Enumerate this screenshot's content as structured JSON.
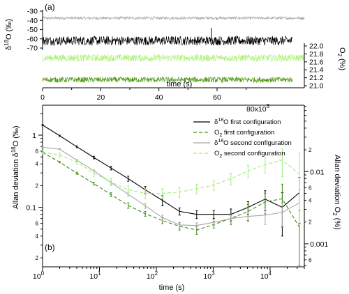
{
  "colors": {
    "d18O_first": "#000000",
    "O2_first": "#3d8c12",
    "d18O_second": "#a6a6a6",
    "O2_second": "#9ef07a",
    "trace_d18O_second": "#a6a6a6",
    "trace_d18O_first": "#000000",
    "trace_O2_a": "#aef27a",
    "trace_O2_b": "#4e9a12"
  },
  "chart_data": [
    {
      "type": "line",
      "panel_label": "(a)",
      "xlabel": "time (s)",
      "x_multiplier_label": "80x10",
      "x_multiplier_exp": "3",
      "xlim": [
        0,
        90000
      ],
      "x_ticks": [
        0,
        20,
        40,
        60
      ],
      "y_left": {
        "label_parts": [
          "δ",
          "18",
          "O (‰)"
        ],
        "ticks": [
          -30,
          -40,
          -50,
          -60,
          -70
        ],
        "ylim": [
          -70,
          -30
        ]
      },
      "y_right": {
        "label_parts": [
          "O",
          "2",
          " (%)"
        ],
        "ticks": [
          "22.0",
          "21.8",
          "21.6",
          "21.4",
          "21.2",
          "21.0"
        ],
        "ylim": [
          21.0,
          22.0
        ]
      },
      "series": [
        {
          "key": "trace_d18O_second",
          "axis": "left",
          "mean": -37.5,
          "noise": 1.5,
          "x_range": [
            0,
            90000
          ]
        },
        {
          "key": "trace_d18O_first",
          "axis": "left",
          "mean": -62,
          "noise": 5,
          "spike_at": 58000,
          "spike_to": -48,
          "x_range": [
            0,
            86000
          ]
        },
        {
          "key": "trace_O2_a",
          "axis": "right",
          "mean": 21.7,
          "noise": 0.09,
          "x_range": [
            0,
            90000
          ]
        },
        {
          "key": "trace_O2_b",
          "axis": "right",
          "mean": 21.15,
          "noise": 0.07,
          "x_range": [
            0,
            86000
          ]
        }
      ]
    },
    {
      "type": "line",
      "panel_label": "(b)",
      "scale": "log-log",
      "xlabel": "time (s)",
      "xlim": [
        1,
        40000
      ],
      "x_ticks": [
        {
          "base": "10",
          "exp": "0",
          "value": 1
        },
        {
          "base": "10",
          "exp": "1",
          "value": 10
        },
        {
          "base": "10",
          "exp": "2",
          "value": 100
        },
        {
          "base": "10",
          "exp": "3",
          "value": 1000
        },
        {
          "base": "10",
          "exp": "4",
          "value": 10000
        }
      ],
      "y_left": {
        "label_parts": [
          "Allan deviation δ",
          "18",
          "O (‰)"
        ],
        "ylim": [
          0.015,
          2.6
        ],
        "major_ticks": [
          {
            "label": "1",
            "value": 1
          },
          {
            "label": "0.1",
            "value": 0.1
          }
        ],
        "minor_labels": [
          {
            "label": "6",
            "value": 0.6
          },
          {
            "label": "4",
            "value": 0.4
          },
          {
            "label": "2",
            "value": 0.2
          },
          {
            "label": "6",
            "value": 0.06
          },
          {
            "label": "4",
            "value": 0.04
          },
          {
            "label": "2",
            "value": 0.02
          }
        ]
      },
      "y_right": {
        "label_parts": [
          "Allan deviation O",
          "2",
          " (%)"
        ],
        "ylim": [
          0.00048,
          0.083
        ],
        "major_ticks": [
          {
            "label": "0.01",
            "value": 0.01
          },
          {
            "label": "0.001",
            "value": 0.001
          }
        ],
        "minor_labels": [
          {
            "label": "2",
            "value": 0.02
          },
          {
            "label": "6",
            "value": 0.006
          },
          {
            "label": "4",
            "value": 0.004
          },
          {
            "label": "2",
            "value": 0.002
          },
          {
            "label": "6",
            "value": 0.0006
          }
        ]
      },
      "legend_position": "top-right",
      "series": [
        {
          "key": "d18O_first",
          "axis": "left",
          "style": "solid",
          "name_parts": [
            "δ",
            "18",
            "O first configuration"
          ],
          "x": [
            1,
            2,
            4,
            8,
            16,
            32,
            64,
            128,
            256,
            512,
            1024,
            2048,
            4096,
            8192,
            16384,
            32768
          ],
          "y": [
            1.38,
            0.98,
            0.69,
            0.49,
            0.35,
            0.25,
            0.175,
            0.125,
            0.088,
            0.08,
            0.08,
            0.08,
            0.1,
            0.13,
            0.1,
            0.16
          ],
          "err": [
            0.02,
            0.02,
            0.02,
            0.02,
            0.02,
            0.02,
            0.02,
            0.02,
            0.01,
            0.01,
            0.01,
            0.015,
            0.02,
            0.04,
            0.06,
            0.1
          ]
        },
        {
          "key": "O2_first",
          "axis": "right",
          "style": "dashed",
          "name_parts": [
            "O",
            "2",
            " first configuration"
          ],
          "x": [
            1,
            2,
            4,
            8,
            16,
            32,
            64,
            128,
            256,
            512,
            1024,
            2048,
            4096,
            8192,
            16384,
            32768
          ],
          "y": [
            0.0185,
            0.0135,
            0.0095,
            0.0068,
            0.0048,
            0.0034,
            0.0026,
            0.0021,
            0.00175,
            0.00155,
            0.00185,
            0.00225,
            0.0028,
            0.0038,
            0.0042,
            0.0017
          ],
          "err": [
            0.0003,
            0.0003,
            0.0003,
            0.0003,
            0.0003,
            0.0003,
            0.0002,
            0.0002,
            0.0002,
            0.0002,
            0.0002,
            0.0004,
            0.0007,
            0.0012,
            0.0025,
            0.0012
          ]
        },
        {
          "key": "d18O_second",
          "axis": "left",
          "style": "solid",
          "name_parts": [
            "δ",
            "18",
            "O second configuration"
          ],
          "x": [
            1,
            2,
            4,
            8,
            16,
            32,
            64,
            128,
            256,
            512,
            1024,
            2048,
            4096,
            8192,
            16384,
            32768
          ],
          "y": [
            0.68,
            0.64,
            0.45,
            0.32,
            0.22,
            0.152,
            0.105,
            0.072,
            0.057,
            0.056,
            0.062,
            0.07,
            0.075,
            0.078,
            0.085,
            0.115
          ],
          "err": [
            0.01,
            0.01,
            0.01,
            0.01,
            0.01,
            0.01,
            0.008,
            0.006,
            0.005,
            0.005,
            0.006,
            0.008,
            0.012,
            0.02,
            0.03,
            0.06
          ]
        },
        {
          "key": "O2_second",
          "axis": "right",
          "style": "dashed",
          "name_parts": [
            "O",
            "2",
            " second configuration"
          ],
          "x": [
            1,
            2,
            4,
            8,
            16,
            32,
            64,
            128,
            256,
            512,
            1024,
            2048,
            4096,
            8192,
            16384,
            32768
          ],
          "y": [
            0.0185,
            0.017,
            0.0135,
            0.0095,
            0.0072,
            0.0056,
            0.005,
            0.005,
            0.0052,
            0.0058,
            0.0065,
            0.008,
            0.0102,
            0.0125,
            0.0145,
            0.0092
          ],
          "err": [
            0.001,
            0.001,
            0.0009,
            0.0009,
            0.0008,
            0.0008,
            0.0008,
            0.0008,
            0.0008,
            0.0009,
            0.001,
            0.0015,
            0.002,
            0.003,
            0.006,
            0.009
          ]
        }
      ]
    }
  ]
}
